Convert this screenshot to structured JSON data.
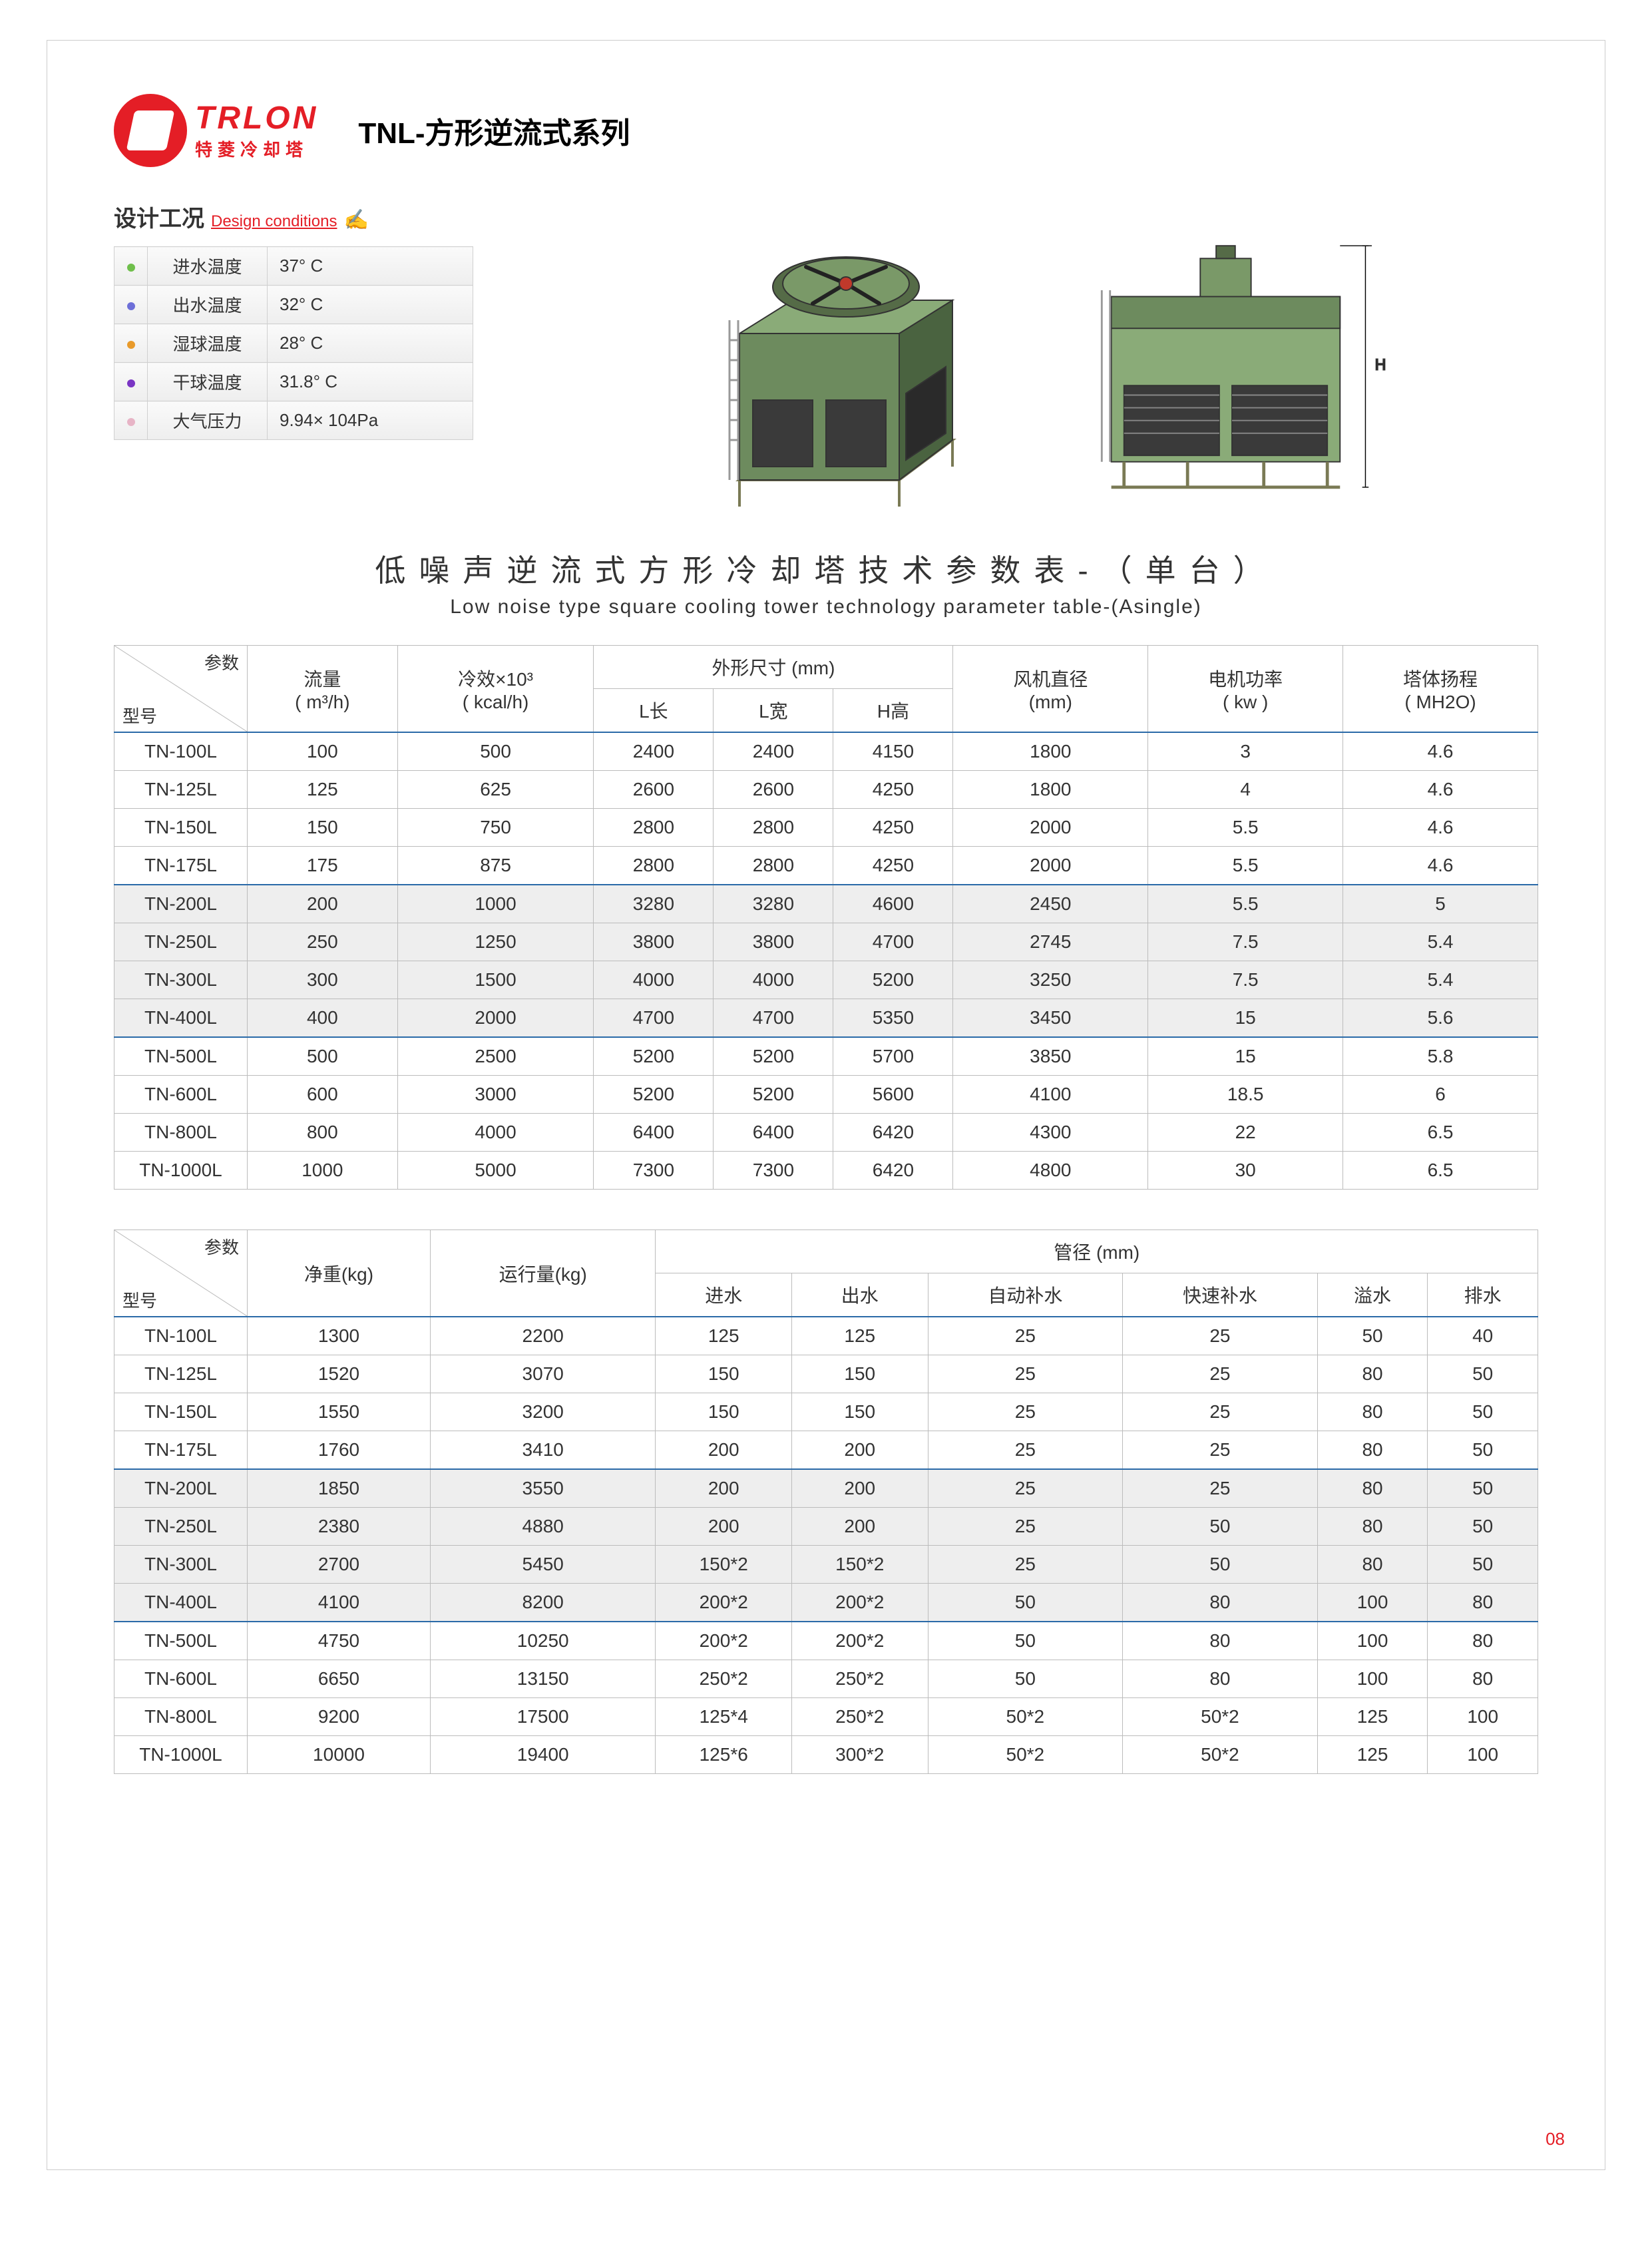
{
  "brand": {
    "name": "TRLON",
    "sub": "特菱冷却塔"
  },
  "series_title": "TNL-方形逆流式系列",
  "design": {
    "head_cn": "设计工况",
    "head_en": "Design conditions",
    "rows": [
      {
        "dot": "#6fbf4b",
        "label": "进水温度",
        "value": "37° C"
      },
      {
        "dot": "#6d6fd8",
        "label": "出水温度",
        "value": "32° C"
      },
      {
        "dot": "#e89a2a",
        "label": "湿球温度",
        "value": "28° C"
      },
      {
        "dot": "#7a35c4",
        "label": "干球温度",
        "value": "31.8° C"
      },
      {
        "dot": "#e7b4c6",
        "label": "大气压力",
        "value": "9.94× 104Pa"
      }
    ]
  },
  "main_title": "低噪声逆流式方形冷却塔技术参数表-（单台）",
  "main_sub": "Low noise  type square cooling tower technology parameter table-(Asingle)",
  "diag": {
    "top": "参数",
    "bot": "型号"
  },
  "table1": {
    "headers": {
      "flow": "流量",
      "flow_unit": "( m³/h)",
      "cool": "冷效×10³",
      "cool_unit": "( kcal/h)",
      "dims": "外形尺寸 (mm)",
      "L": "L长",
      "W": "L宽",
      "H": "H高",
      "fan": "风机直径",
      "fan_unit": "(mm)",
      "motor": "电机功率",
      "motor_unit": "( kw )",
      "lift": "塔体扬程",
      "lift_unit": "( MH2O)"
    },
    "rows": [
      {
        "model": "TN-100L",
        "flow": "100",
        "cool": "500",
        "L": "2400",
        "W": "2400",
        "H": "4150",
        "fan": "1800",
        "motor": "3",
        "lift": "4.6",
        "shade": false,
        "sep": true
      },
      {
        "model": "TN-125L",
        "flow": "125",
        "cool": "625",
        "L": "2600",
        "W": "2600",
        "H": "4250",
        "fan": "1800",
        "motor": "4",
        "lift": "4.6",
        "shade": false
      },
      {
        "model": "TN-150L",
        "flow": "150",
        "cool": "750",
        "L": "2800",
        "W": "2800",
        "H": "4250",
        "fan": "2000",
        "motor": "5.5",
        "lift": "4.6",
        "shade": false
      },
      {
        "model": "TN-175L",
        "flow": "175",
        "cool": "875",
        "L": "2800",
        "W": "2800",
        "H": "4250",
        "fan": "2000",
        "motor": "5.5",
        "lift": "4.6",
        "shade": false
      },
      {
        "model": "TN-200L",
        "flow": "200",
        "cool": "1000",
        "L": "3280",
        "W": "3280",
        "H": "4600",
        "fan": "2450",
        "motor": "5.5",
        "lift": "5",
        "shade": true,
        "sep": true
      },
      {
        "model": "TN-250L",
        "flow": "250",
        "cool": "1250",
        "L": "3800",
        "W": "3800",
        "H": "4700",
        "fan": "2745",
        "motor": "7.5",
        "lift": "5.4",
        "shade": true
      },
      {
        "model": "TN-300L",
        "flow": "300",
        "cool": "1500",
        "L": "4000",
        "W": "4000",
        "H": "5200",
        "fan": "3250",
        "motor": "7.5",
        "lift": "5.4",
        "shade": true
      },
      {
        "model": "TN-400L",
        "flow": "400",
        "cool": "2000",
        "L": "4700",
        "W": "4700",
        "H": "5350",
        "fan": "3450",
        "motor": "15",
        "lift": "5.6",
        "shade": true
      },
      {
        "model": "TN-500L",
        "flow": "500",
        "cool": "2500",
        "L": "5200",
        "W": "5200",
        "H": "5700",
        "fan": "3850",
        "motor": "15",
        "lift": "5.8",
        "shade": false,
        "sep": true
      },
      {
        "model": "TN-600L",
        "flow": "600",
        "cool": "3000",
        "L": "5200",
        "W": "5200",
        "H": "5600",
        "fan": "4100",
        "motor": "18.5",
        "lift": "6",
        "shade": false
      },
      {
        "model": "TN-800L",
        "flow": "800",
        "cool": "4000",
        "L": "6400",
        "W": "6400",
        "H": "6420",
        "fan": "4300",
        "motor": "22",
        "lift": "6.5",
        "shade": false
      },
      {
        "model": "TN-1000L",
        "flow": "1000",
        "cool": "5000",
        "L": "7300",
        "W": "7300",
        "H": "6420",
        "fan": "4800",
        "motor": "30",
        "lift": "6.5",
        "shade": false
      }
    ]
  },
  "table2": {
    "headers": {
      "net": "净重(kg)",
      "run": "运行量(kg)",
      "pipe": "管径 (mm)",
      "in": "进水",
      "out": "出水",
      "auto": "自动补水",
      "fast": "快速补水",
      "over": "溢水",
      "drain": "排水"
    },
    "rows": [
      {
        "model": "TN-100L",
        "net": "1300",
        "run": "2200",
        "in": "125",
        "out": "125",
        "auto": "25",
        "fast": "25",
        "over": "50",
        "drain": "40",
        "shade": false,
        "sep": true
      },
      {
        "model": "TN-125L",
        "net": "1520",
        "run": "3070",
        "in": "150",
        "out": "150",
        "auto": "25",
        "fast": "25",
        "over": "80",
        "drain": "50",
        "shade": false
      },
      {
        "model": "TN-150L",
        "net": "1550",
        "run": "3200",
        "in": "150",
        "out": "150",
        "auto": "25",
        "fast": "25",
        "over": "80",
        "drain": "50",
        "shade": false
      },
      {
        "model": "TN-175L",
        "net": "1760",
        "run": "3410",
        "in": "200",
        "out": "200",
        "auto": "25",
        "fast": "25",
        "over": "80",
        "drain": "50",
        "shade": false
      },
      {
        "model": "TN-200L",
        "net": "1850",
        "run": "3550",
        "in": "200",
        "out": "200",
        "auto": "25",
        "fast": "25",
        "over": "80",
        "drain": "50",
        "shade": true,
        "sep": true
      },
      {
        "model": "TN-250L",
        "net": "2380",
        "run": "4880",
        "in": "200",
        "out": "200",
        "auto": "25",
        "fast": "50",
        "over": "80",
        "drain": "50",
        "shade": true
      },
      {
        "model": "TN-300L",
        "net": "2700",
        "run": "5450",
        "in": "150*2",
        "out": "150*2",
        "auto": "25",
        "fast": "50",
        "over": "80",
        "drain": "50",
        "shade": true
      },
      {
        "model": "TN-400L",
        "net": "4100",
        "run": "8200",
        "in": "200*2",
        "out": "200*2",
        "auto": "50",
        "fast": "80",
        "over": "100",
        "drain": "80",
        "shade": true
      },
      {
        "model": "TN-500L",
        "net": "4750",
        "run": "10250",
        "in": "200*2",
        "out": "200*2",
        "auto": "50",
        "fast": "80",
        "over": "100",
        "drain": "80",
        "shade": false,
        "sep": true
      },
      {
        "model": "TN-600L",
        "net": "6650",
        "run": "13150",
        "in": "250*2",
        "out": "250*2",
        "auto": "50",
        "fast": "80",
        "over": "100",
        "drain": "80",
        "shade": false
      },
      {
        "model": "TN-800L",
        "net": "9200",
        "run": "17500",
        "in": "125*4",
        "out": "250*2",
        "auto": "50*2",
        "fast": "50*2",
        "over": "125",
        "drain": "100",
        "shade": false
      },
      {
        "model": "TN-1000L",
        "net": "10000",
        "run": "19400",
        "in": "125*6",
        "out": "300*2",
        "auto": "50*2",
        "fast": "50*2",
        "over": "125",
        "drain": "100",
        "shade": false
      }
    ]
  },
  "page_num": "08",
  "colors": {
    "accent": "#e41e26",
    "table_sep": "#2a6aa8",
    "shade": "#eeeeee",
    "tower_body": "#6d8b5e",
    "tower_dark": "#4a6340",
    "tower_frame": "#7a7a55"
  }
}
